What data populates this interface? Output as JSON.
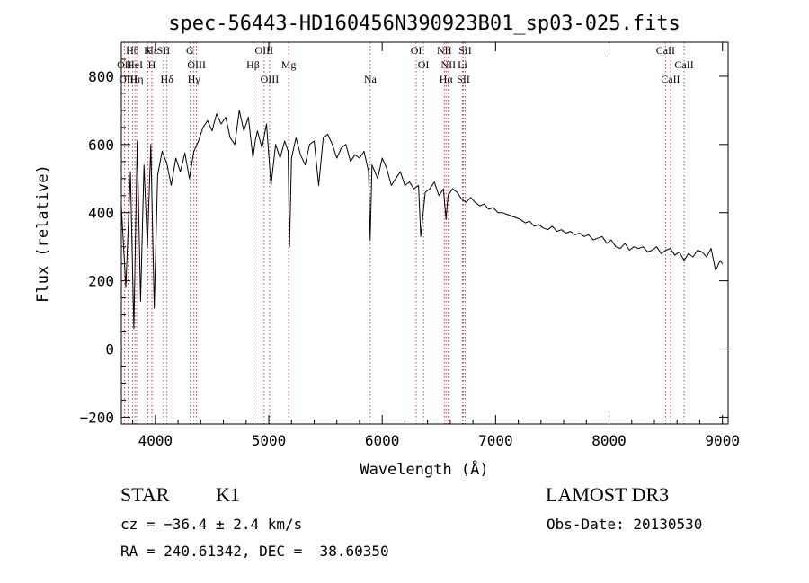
{
  "chart_data": {
    "type": "line",
    "title": "spec-56443-HD160456N390923B01_sp03-025.fits",
    "xlabel": "Wavelength (Å)",
    "ylabel": "Flux (relative)",
    "xlim": [
      3700,
      9050
    ],
    "ylim": [
      -220,
      900
    ],
    "x_ticks": [
      4000,
      5000,
      6000,
      7000,
      8000,
      9000
    ],
    "y_ticks": [
      -200,
      0,
      200,
      400,
      600,
      800
    ],
    "series": [
      {
        "color": "#000000",
        "x": [
          3700,
          3740,
          3780,
          3810,
          3840,
          3870,
          3900,
          3930,
          3960,
          3990,
          4020,
          4060,
          4100,
          4140,
          4180,
          4220,
          4260,
          4300,
          4340,
          4380,
          4420,
          4460,
          4500,
          4540,
          4580,
          4620,
          4660,
          4700,
          4740,
          4780,
          4820,
          4860,
          4880,
          4900,
          4940,
          4980,
          5020,
          5060,
          5100,
          5140,
          5170,
          5183,
          5200,
          5240,
          5280,
          5320,
          5360,
          5400,
          5440,
          5480,
          5520,
          5560,
          5600,
          5640,
          5680,
          5720,
          5760,
          5800,
          5840,
          5880,
          5894,
          5910,
          5960,
          6000,
          6040,
          6080,
          6120,
          6160,
          6200,
          6240,
          6280,
          6320,
          6340,
          6380,
          6420,
          6460,
          6500,
          6540,
          6563,
          6580,
          6620,
          6660,
          6700,
          6740,
          6780,
          6820,
          6860,
          6900,
          6940,
          6980,
          7020,
          7060,
          7100,
          7140,
          7180,
          7220,
          7260,
          7300,
          7340,
          7380,
          7420,
          7460,
          7500,
          7540,
          7580,
          7620,
          7660,
          7700,
          7740,
          7780,
          7820,
          7860,
          7900,
          7940,
          7980,
          8020,
          8060,
          8100,
          8140,
          8180,
          8220,
          8260,
          8300,
          8340,
          8380,
          8420,
          8460,
          8500,
          8542,
          8580,
          8620,
          8662,
          8700,
          8740,
          8780,
          8820,
          8860,
          8900,
          8940,
          8980,
          9000
        ],
        "y": [
          420,
          180,
          520,
          60,
          610,
          140,
          540,
          300,
          600,
          120,
          510,
          580,
          545,
          480,
          560,
          520,
          575,
          500,
          580,
          610,
          650,
          670,
          640,
          690,
          660,
          680,
          620,
          600,
          700,
          640,
          680,
          560,
          610,
          640,
          590,
          660,
          480,
          600,
          560,
          610,
          580,
          300,
          560,
          620,
          570,
          540,
          600,
          610,
          480,
          620,
          630,
          600,
          560,
          590,
          600,
          550,
          570,
          560,
          580,
          520,
          320,
          540,
          500,
          560,
          530,
          480,
          500,
          520,
          480,
          490,
          470,
          480,
          330,
          460,
          470,
          490,
          450,
          470,
          380,
          450,
          470,
          460,
          440,
          430,
          445,
          430,
          420,
          425,
          410,
          415,
          400,
          400,
          395,
          390,
          385,
          380,
          370,
          375,
          360,
          365,
          355,
          350,
          360,
          345,
          350,
          340,
          345,
          335,
          340,
          330,
          335,
          320,
          325,
          330,
          310,
          320,
          300,
          295,
          310,
          290,
          300,
          295,
          300,
          285,
          290,
          300,
          280,
          290,
          295,
          275,
          285,
          260,
          280,
          270,
          290,
          285,
          270,
          295,
          230,
          260,
          250
        ]
      }
    ],
    "line_markers": [
      {
        "label": "Hε",
        "x": 3970
      },
      {
        "label": "OII",
        "x": 3727
      },
      {
        "label": "OIII",
        "x": 3760
      },
      {
        "label": "Hθ",
        "x": 3798
      },
      {
        "label": "HeI",
        "x": 3820
      },
      {
        "label": "Hη",
        "x": 3835
      },
      {
        "label": "K",
        "x": 3934
      },
      {
        "label": "H",
        "x": 3969
      },
      {
        "label": "Hδ",
        "x": 4102
      },
      {
        "label": "SII",
        "x": 4072
      },
      {
        "label": "OIII",
        "x": 4363
      },
      {
        "label": "Hγ",
        "x": 4340
      },
      {
        "label": "G",
        "x": 4305
      },
      {
        "label": "Hβ",
        "x": 4861
      },
      {
        "label": "OIII",
        "x": 5007
      },
      {
        "label": "OIII",
        "x": 4959
      },
      {
        "label": "Mg",
        "x": 5175
      },
      {
        "label": "Na",
        "x": 5894
      },
      {
        "label": "OI",
        "x": 6300
      },
      {
        "label": "OI",
        "x": 6364
      },
      {
        "label": "Hα",
        "x": 6563
      },
      {
        "label": "NII",
        "x": 6548
      },
      {
        "label": "NII",
        "x": 6583
      },
      {
        "label": "SII",
        "x": 6716
      },
      {
        "label": "SII",
        "x": 6731
      },
      {
        "label": "Li",
        "x": 6708
      },
      {
        "label": "CaII",
        "x": 8542
      },
      {
        "label": "CaII",
        "x": 8498
      },
      {
        "label": "CaII",
        "x": 8662
      }
    ]
  },
  "info": {
    "class_label": "STAR",
    "subclass": "K1",
    "survey": "LAMOST DR3",
    "redshift_line": "cz = −36.4 ± 2.4 km/s",
    "obs_date": "Obs-Date: 20130530",
    "coords": "RA = 240.61342, DEC =  38.60350"
  }
}
